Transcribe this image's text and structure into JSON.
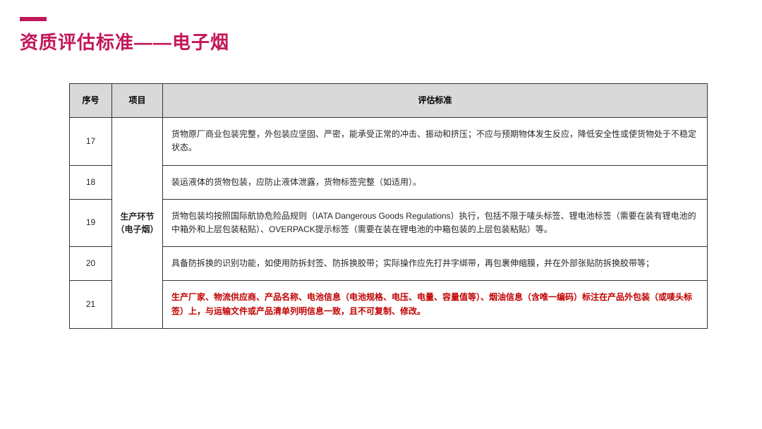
{
  "colors": {
    "accent": "#c2185b",
    "header_bg": "#d9d9d9",
    "border": "#333333",
    "text": "#262626",
    "highlight": "#c00000",
    "page_bg": "#ffffff"
  },
  "title": "资质评估标准——电子烟",
  "columns": {
    "seq": "序号",
    "project": "项目",
    "standard": "评估标准"
  },
  "project_label": "生产环节（电子烟）",
  "rows": [
    {
      "seq": "17",
      "standard": "货物原厂商业包装完整，外包装应坚固、严密，能承受正常的冲击、振动和挤压；不应与预期物体发生反应，降低安全性或使货物处于不稳定状态。",
      "highlight": false
    },
    {
      "seq": "18",
      "standard": "装运液体的货物包装，应防止液体泄露，货物标签完整（如适用）。",
      "highlight": false
    },
    {
      "seq": "19",
      "standard": "货物包装均按照国际航协危险品规则（IATA Dangerous Goods Regulations）执行，包括不限于唛头标签、锂电池标签（需要在装有锂电池的中箱外和上层包装粘贴）、OVERPACK提示标签（需要在装在锂电池的中箱包装的上层包装粘贴）等。",
      "highlight": false
    },
    {
      "seq": "20",
      "standard": "具备防拆换的识别功能，如使用防拆封签、防拆换胶带；实际操作应先打井字绑带，再包裹伸缩膜，并在外部张贴防拆换胶带等；",
      "highlight": false
    },
    {
      "seq": "21",
      "standard": "生产厂家、物流供应商、产品名称、电池信息（电池规格、电压、电量、容量值等）、烟油信息（含唯一编码）标注在产品外包装（或唛头标签）上，与运输文件或产品清单列明信息一致，且不可复制、修改。",
      "highlight": true
    }
  ]
}
